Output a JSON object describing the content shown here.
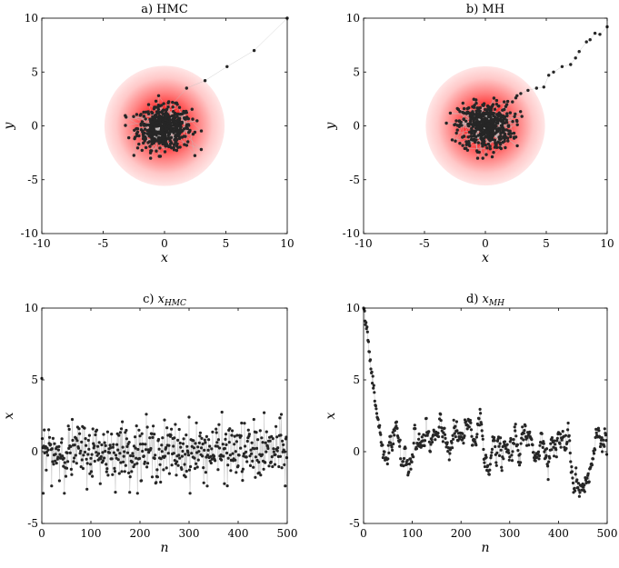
{
  "chart_data": [
    {
      "type": "scatter",
      "title": "a) HMC",
      "xlabel": "x",
      "ylabel": "y",
      "xlim": [
        -10,
        10
      ],
      "ylim": [
        -10,
        10
      ],
      "xticks": [
        "-10",
        "-5",
        "0",
        "5",
        "10"
      ],
      "yticks": [
        "-10",
        "-5",
        "0",
        "5",
        "10"
      ],
      "background": "2D Gaussian density contours centered at (0,0)",
      "colors": {
        "density": "#ff0000",
        "points": "#262626",
        "trace_line": "#bdbdbd"
      },
      "grid": false,
      "start_path": {
        "x": [
          10,
          7.3,
          5.1,
          3.3,
          1.8
        ],
        "y": [
          10,
          7.0,
          5.5,
          4.2,
          3.5
        ]
      },
      "cloud": {
        "center": [
          0,
          -0.2
        ],
        "spread": [
          1.1,
          1.0
        ],
        "count": 500
      }
    },
    {
      "type": "scatter",
      "title": "b) MH",
      "xlabel": "x",
      "ylabel": "y",
      "xlim": [
        -10,
        10
      ],
      "ylim": [
        -10,
        10
      ],
      "xticks": [
        "-10",
        "-5",
        "0",
        "5",
        "10"
      ],
      "yticks": [
        "-10",
        "-5",
        "0",
        "5",
        "10"
      ],
      "background": "2D Gaussian density contours centered at (0,0)",
      "colors": {
        "density": "#ff0000",
        "points": "#262626",
        "trace_line": "#bdbdbd"
      },
      "grid": false,
      "start_path": {
        "x": [
          10,
          9.4,
          9.0,
          8.6,
          8.3,
          7.7,
          7.4,
          7.0,
          6.3,
          5.6,
          5.2,
          4.8,
          4.2,
          3.5,
          2.9,
          2.6,
          2.5
        ],
        "y": [
          9.2,
          8.5,
          8.6,
          8.0,
          7.8,
          6.9,
          6.3,
          5.7,
          5.5,
          5.0,
          4.7,
          3.6,
          3.5,
          3.3,
          3.0,
          2.8,
          2.6
        ]
      },
      "cloud": {
        "center": [
          0,
          0
        ],
        "spread": [
          1.1,
          1.1
        ],
        "count": 480
      }
    },
    {
      "type": "scatter",
      "title": "c) x_HMC",
      "xlabel": "n",
      "ylabel": "x",
      "xlim": [
        0,
        500
      ],
      "ylim": [
        -5,
        10
      ],
      "xticks": [
        "0",
        "100",
        "200",
        "300",
        "400",
        "500"
      ],
      "yticks": [
        "-5",
        "0",
        "5",
        "10"
      ],
      "colors": {
        "points": "#262626",
        "trace_line": "#bdbdbd"
      },
      "grid": false,
      "n_samples": 500,
      "first_value": 5.1,
      "mean": 0,
      "std": 1.0
    },
    {
      "type": "scatter",
      "title": "d) x_MH",
      "xlabel": "n",
      "ylabel": "x",
      "xlim": [
        0,
        500
      ],
      "ylim": [
        -5,
        10
      ],
      "xticks": [
        "0",
        "100",
        "200",
        "300",
        "400",
        "500"
      ],
      "yticks": [
        "-5",
        "0",
        "5",
        "10"
      ],
      "colors": {
        "points": "#262626",
        "trace_line": "#bdbdbd"
      },
      "grid": false,
      "n_samples": 500,
      "first_value": 10,
      "burn_in": {
        "n": [
          0,
          5,
          10,
          15,
          20,
          25,
          30,
          35,
          40
        ],
        "x": [
          10,
          9.0,
          7.5,
          5.8,
          4.6,
          3.2,
          2.2,
          1.0,
          0.2
        ]
      },
      "segments": [
        {
          "n": [
            40,
            100
          ],
          "x": [
            0.3,
            0.0
          ]
        },
        {
          "n": [
            100,
            230
          ],
          "x": [
            0.5,
            1.0
          ]
        },
        {
          "n": [
            230,
            240
          ],
          "x": [
            2.0,
            2.2
          ]
        },
        {
          "n": [
            240,
            300
          ],
          "x": [
            0.2,
            -0.5
          ]
        },
        {
          "n": [
            300,
            420
          ],
          "x": [
            0.5,
            0.8
          ]
        },
        {
          "n": [
            420,
            445
          ],
          "x": [
            -1.5,
            -2.2
          ]
        },
        {
          "n": [
            445,
            470
          ],
          "x": [
            -2.0,
            -1.0
          ]
        },
        {
          "n": [
            470,
            500
          ],
          "x": [
            0.8,
            1.5
          ]
        }
      ]
    }
  ]
}
